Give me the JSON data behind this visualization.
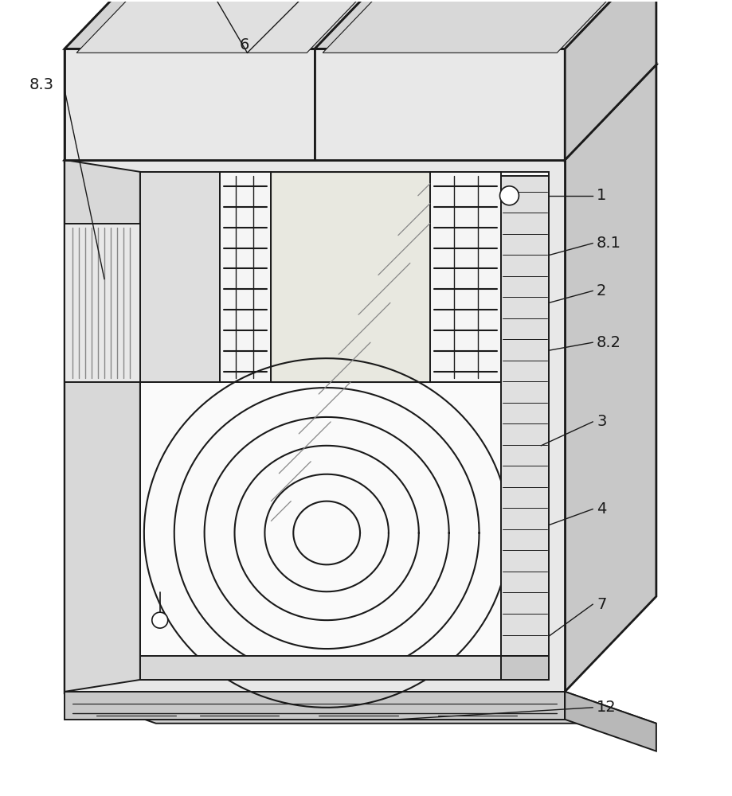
{
  "bg_color": "#ffffff",
  "line_color": "#1a1a1a",
  "lw_thick": 2.0,
  "lw_med": 1.4,
  "lw_thin": 0.9,
  "lw_hair": 0.6,
  "figsize": [
    9.19,
    10.0
  ],
  "dpi": 100,
  "label_fs": 14,
  "colors": {
    "face_front": "#e8e8e8",
    "face_top": "#d4d4d4",
    "face_right": "#c8c8c8",
    "face_left": "#d0d0d0",
    "inner_back": "#f0f0f0",
    "inner_white": "#fafafa",
    "foam_gray": "#dedede",
    "grille_bg": "#f5f5f5",
    "pallet": "#c8c8c8",
    "ridge_bg": "#e0e0e0"
  }
}
